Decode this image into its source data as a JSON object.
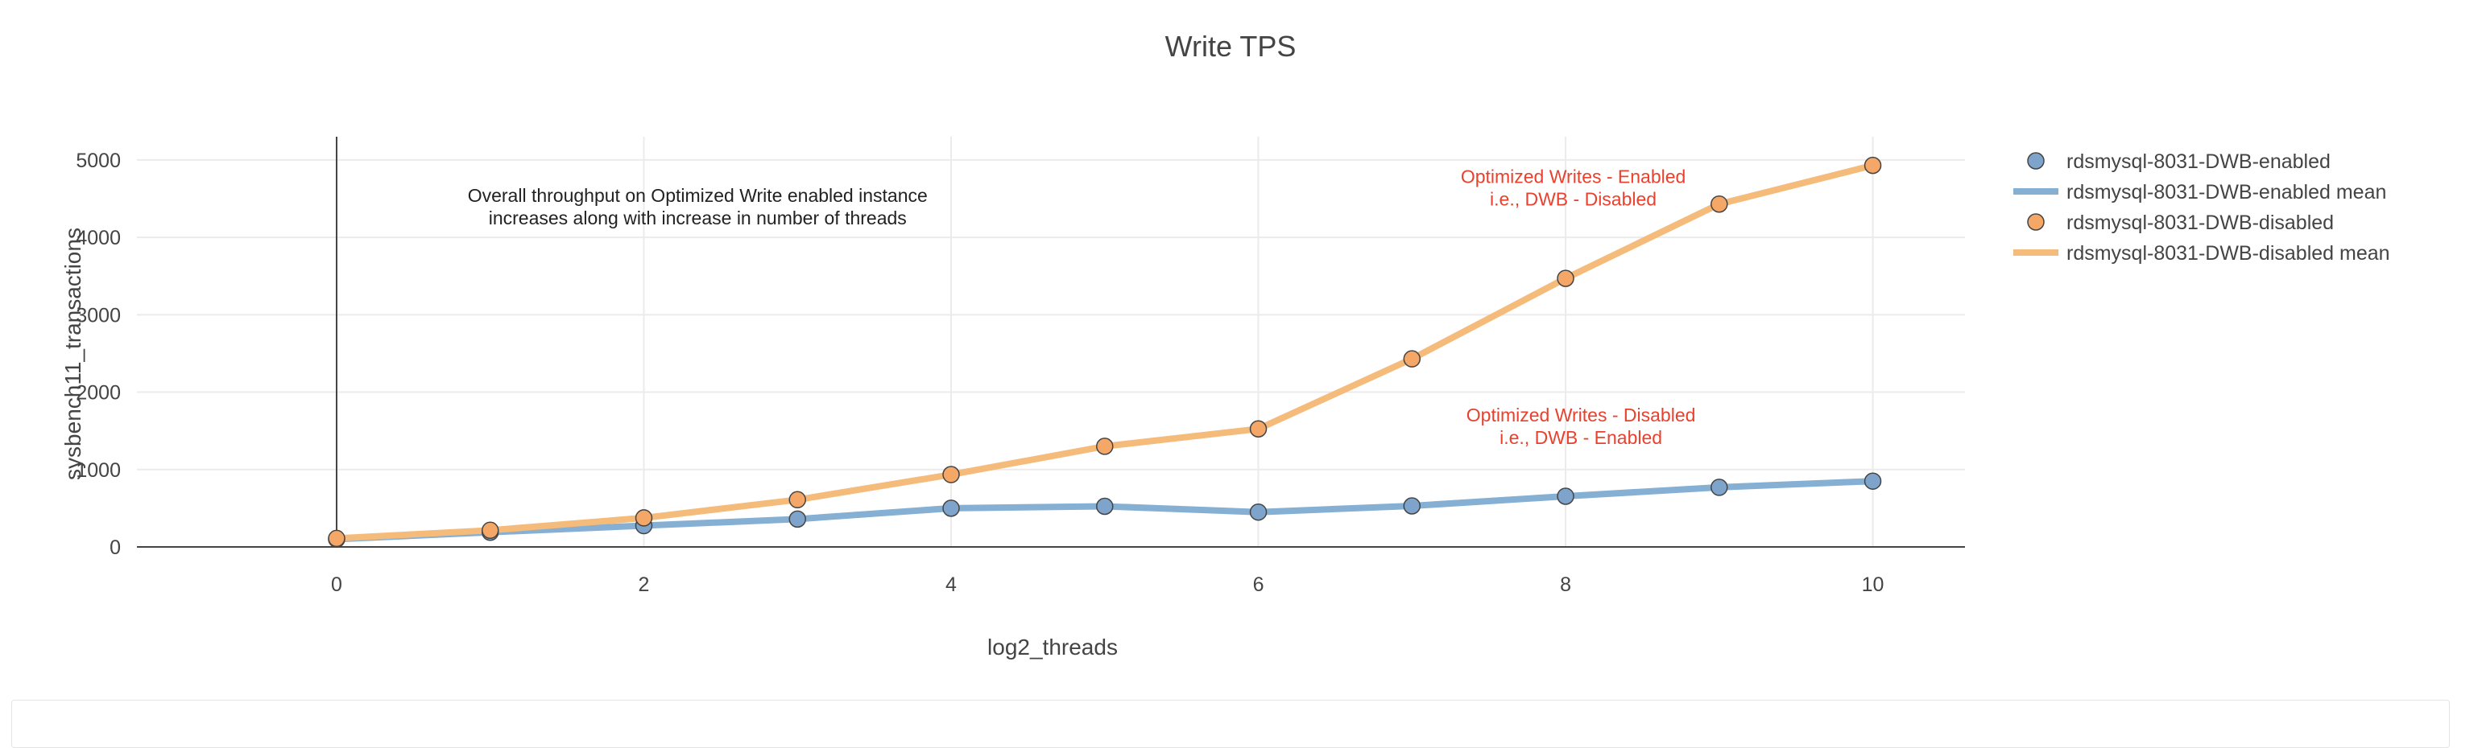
{
  "chart_data": {
    "type": "line",
    "title": "Write TPS",
    "xlabel": "log2_threads",
    "ylabel": "sysbench11_transactions",
    "xlim": [
      -1.3,
      10.6
    ],
    "ylim": [
      0,
      5300
    ],
    "x_ticks": [
      0,
      2,
      4,
      6,
      8,
      10
    ],
    "y_ticks": [
      0,
      1000,
      2000,
      3000,
      4000,
      5000
    ],
    "grid": true,
    "legend_position": "right",
    "x": [
      0,
      1,
      2,
      3,
      4,
      5,
      6,
      7,
      8,
      9,
      10
    ],
    "series": [
      {
        "name": "rdsmysql-8031-DWB-enabled",
        "mean_name": "rdsmysql-8031-DWB-enabled mean",
        "color": "#85afd3",
        "marker_color": "#7ea4cc",
        "values": [
          100,
          190,
          275,
          360,
          500,
          525,
          450,
          530,
          655,
          770,
          850
        ]
      },
      {
        "name": "rdsmysql-8031-DWB-disabled",
        "mean_name": "rdsmysql-8031-DWB-disabled mean",
        "color": "#f5bb7b",
        "marker_color": "#f4a766",
        "values": [
          110,
          215,
          375,
          610,
          935,
          1300,
          1525,
          2430,
          3470,
          4430,
          4930
        ]
      }
    ],
    "annotations": [
      {
        "id": "overall",
        "lines": [
          "Overall throughput on Optimized Write enabled instance",
          "increases along with increase in number of threads"
        ],
        "x": 2.35,
        "y": 4460,
        "color": "#222222"
      },
      {
        "id": "owe",
        "lines": [
          "Optimized Writes - Enabled",
          "i.e., DWB - Disabled"
        ],
        "x": 8.05,
        "y": 4700,
        "color": "#e8412e"
      },
      {
        "id": "owd",
        "lines": [
          "Optimized Writes - Disabled",
          "i.e., DWB - Enabled"
        ],
        "x": 8.1,
        "y": 1620,
        "color": "#e8412e"
      }
    ]
  }
}
